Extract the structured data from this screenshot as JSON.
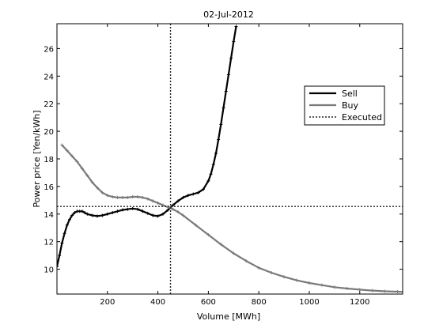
{
  "chart_data": {
    "type": "line",
    "title": "02-Jul-2012",
    "xlabel": "Volume [MWh]",
    "ylabel": "Power price [Yen/kWh]",
    "xlim": [
      0,
      1370
    ],
    "ylim": [
      8.2,
      27.8
    ],
    "xticks": [
      200,
      400,
      600,
      800,
      1000,
      1200
    ],
    "yticks": [
      10,
      12,
      14,
      16,
      18,
      20,
      22,
      24,
      26
    ],
    "grid": false,
    "legend_position": "top-right",
    "series": [
      {
        "name": "Sell",
        "color": "#000000",
        "marker": "plus",
        "x": [
          0,
          10,
          20,
          30,
          40,
          50,
          60,
          70,
          80,
          90,
          100,
          110,
          120,
          140,
          160,
          180,
          200,
          220,
          240,
          260,
          280,
          300,
          320,
          340,
          360,
          380,
          400,
          420,
          440,
          460,
          480,
          500,
          520,
          540,
          560,
          580,
          600,
          610,
          620,
          630,
          640,
          650,
          660,
          670,
          680,
          690,
          700,
          710
        ],
        "y": [
          10.2,
          11.0,
          11.9,
          12.6,
          13.2,
          13.6,
          13.9,
          14.1,
          14.2,
          14.2,
          14.2,
          14.1,
          14.0,
          13.9,
          13.85,
          13.9,
          14.0,
          14.1,
          14.2,
          14.3,
          14.35,
          14.4,
          14.35,
          14.2,
          14.05,
          13.9,
          13.85,
          14.0,
          14.3,
          14.65,
          14.95,
          15.2,
          15.35,
          15.45,
          15.55,
          15.8,
          16.4,
          16.9,
          17.6,
          18.4,
          19.4,
          20.5,
          21.7,
          22.9,
          24.1,
          25.3,
          26.5,
          27.6
        ]
      },
      {
        "name": "Buy",
        "color": "#7a7a7a",
        "marker": "plus",
        "x": [
          20,
          40,
          60,
          80,
          100,
          120,
          140,
          160,
          180,
          200,
          220,
          240,
          260,
          280,
          300,
          320,
          340,
          360,
          380,
          400,
          420,
          440,
          460,
          480,
          500,
          550,
          600,
          650,
          700,
          750,
          800,
          850,
          900,
          950,
          1000,
          1050,
          1100,
          1150,
          1200,
          1250,
          1300,
          1350,
          1370
        ],
        "y": [
          19.0,
          18.6,
          18.2,
          17.8,
          17.3,
          16.8,
          16.3,
          15.9,
          15.55,
          15.35,
          15.25,
          15.2,
          15.2,
          15.2,
          15.25,
          15.25,
          15.2,
          15.1,
          14.95,
          14.8,
          14.65,
          14.5,
          14.35,
          14.15,
          13.9,
          13.2,
          12.5,
          11.8,
          11.15,
          10.6,
          10.1,
          9.75,
          9.45,
          9.2,
          9.0,
          8.85,
          8.7,
          8.6,
          8.52,
          8.45,
          8.4,
          8.37,
          8.36
        ]
      },
      {
        "name": "Executed",
        "color": "#222222",
        "style": "dotted",
        "x_value": 450,
        "y_value": 14.55
      }
    ]
  }
}
